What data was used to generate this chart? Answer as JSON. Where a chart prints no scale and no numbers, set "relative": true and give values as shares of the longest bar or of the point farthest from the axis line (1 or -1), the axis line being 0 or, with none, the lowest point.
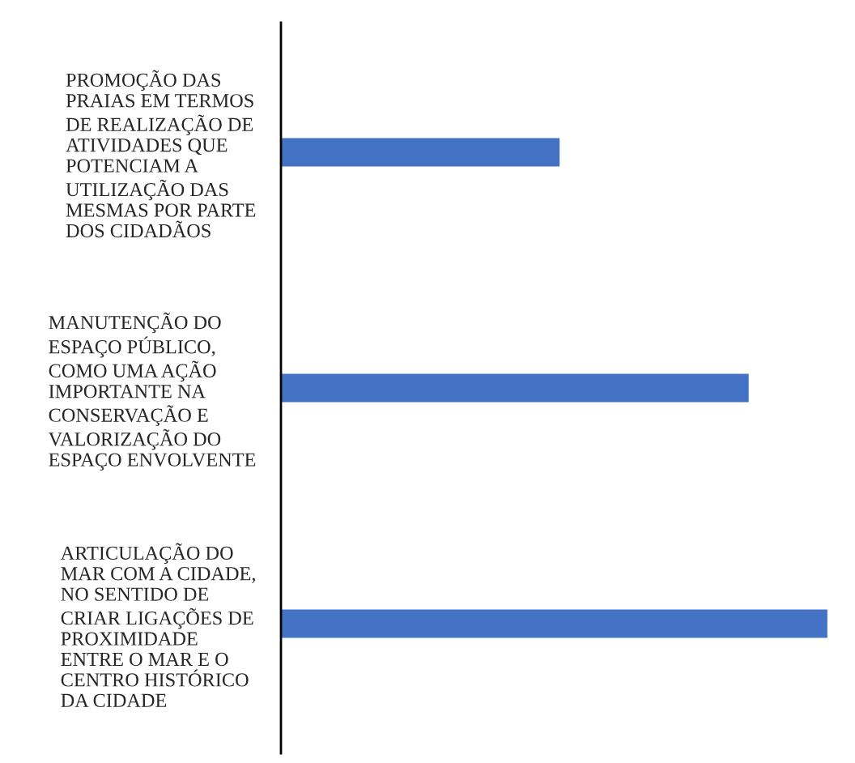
{
  "chart_data": {
    "type": "bar",
    "orientation": "horizontal",
    "relative": true,
    "categories": [
      "PROMOÇÃO DAS\nPRAIAS EM TERMOS\nDE REALIZAÇÃO DE\nATIVIDADES QUE\nPOTENCIAM A\nUTILIZAÇÃO DAS\nMESMAS POR PARTE\nDOS CIDADÃOS",
      "MANUTENÇÃO DO\nESPAÇO PÚBLICO,\nCOMO UMA AÇÃO\nIMPORTANTE NA\nCONSERVAÇÃO E\nVALORIZAÇÃO DO\nESPAÇO ENVOLVENTE",
      "ARTICULAÇÃO DO\nMAR COM A CIDADE,\nNO SENTIDO DE\nCRIAR LIGAÇÕES DE\nPROXIMIDADE\nENTRE O MAR E O\nCENTRO HISTÓRICO\nDA CIDADE"
    ],
    "values": [
      0.51,
      0.856,
      1
    ],
    "color": "#4472c4",
    "grid": false,
    "legend": false
  }
}
